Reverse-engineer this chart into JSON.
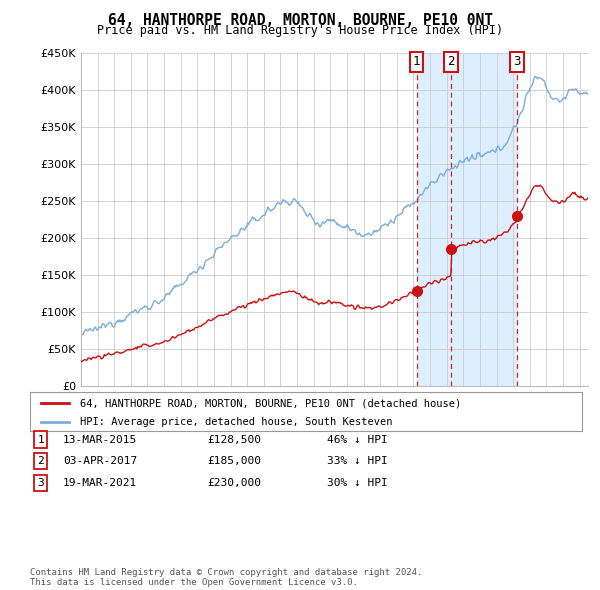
{
  "title": "64, HANTHORPE ROAD, MORTON, BOURNE, PE10 0NT",
  "subtitle": "Price paid vs. HM Land Registry's House Price Index (HPI)",
  "ylim": [
    0,
    450000
  ],
  "yticks": [
    0,
    50000,
    100000,
    150000,
    200000,
    250000,
    300000,
    350000,
    400000,
    450000
  ],
  "ytick_labels": [
    "£0",
    "£50K",
    "£100K",
    "£150K",
    "£200K",
    "£250K",
    "£300K",
    "£350K",
    "£400K",
    "£450K"
  ],
  "xlim_start": 1995.0,
  "xlim_end": 2025.5,
  "hpi_color": "#7aaddc",
  "price_color": "#cc1111",
  "shade_color": "#ddeeff",
  "purchase_dates": [
    2015.19,
    2017.25,
    2021.21
  ],
  "purchase_prices": [
    128500,
    185000,
    230000
  ],
  "purchase_labels": [
    "1",
    "2",
    "3"
  ],
  "legend_price_label": "64, HANTHORPE ROAD, MORTON, BOURNE, PE10 0NT (detached house)",
  "legend_hpi_label": "HPI: Average price, detached house, South Kesteven",
  "table_rows": [
    {
      "num": "1",
      "date": "13-MAR-2015",
      "price": "£128,500",
      "change": "46% ↓ HPI"
    },
    {
      "num": "2",
      "date": "03-APR-2017",
      "price": "£185,000",
      "change": "33% ↓ HPI"
    },
    {
      "num": "3",
      "date": "19-MAR-2021",
      "price": "£230,000",
      "change": "30% ↓ HPI"
    }
  ],
  "footer": "Contains HM Land Registry data © Crown copyright and database right 2024.\nThis data is licensed under the Open Government Licence v3.0.",
  "background_color": "#ffffff",
  "grid_color": "#cccccc"
}
